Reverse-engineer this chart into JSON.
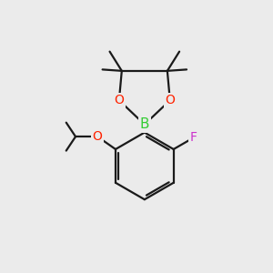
{
  "bg_color": "#ebebeb",
  "bond_color": "#1a1a1a",
  "B_color": "#33cc33",
  "O_color": "#ff2200",
  "F_color": "#cc33cc",
  "line_width": 1.6,
  "font_size_atom": 10,
  "fig_size": [
    3.0,
    3.0
  ],
  "dpi": 100,
  "xlim": [
    0,
    10
  ],
  "ylim": [
    0,
    10
  ]
}
